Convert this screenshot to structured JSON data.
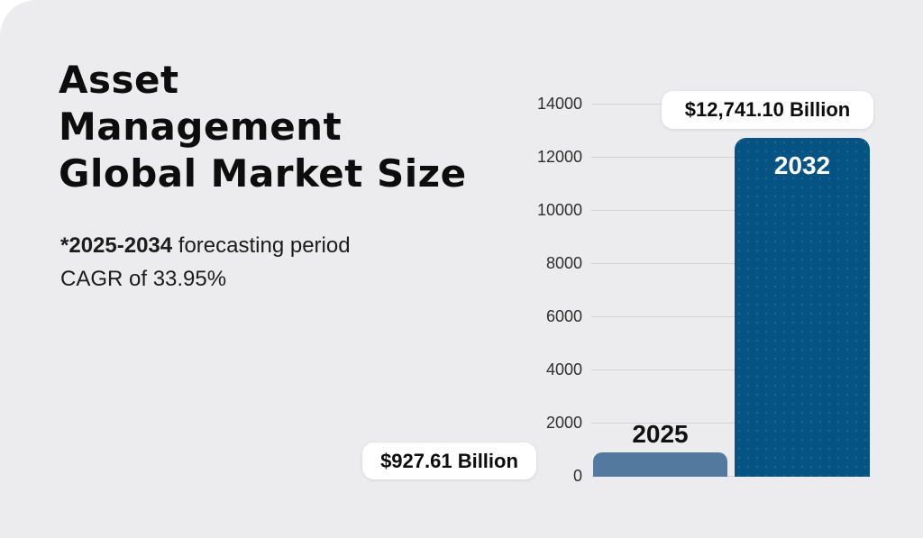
{
  "header": {
    "title_lines": [
      "Asset",
      "Management",
      "Global Market Size"
    ],
    "forecast_bold": "*2025-2034",
    "forecast_rest": " forecasting period",
    "cagr_line": "CAGR of 33.95%"
  },
  "chart_data": {
    "type": "bar",
    "title": "Asset Management Global Market Size",
    "unit": "USD Billion",
    "categories": [
      "2025",
      "2032"
    ],
    "values": [
      927.61,
      12741.1
    ],
    "data_labels": [
      "$927.61 Billion",
      "$12,741.10 Billion"
    ],
    "bar_colors": [
      "#54799E",
      "#045382"
    ],
    "ylim": [
      0,
      14000
    ],
    "yticks": [
      0,
      2000,
      4000,
      6000,
      8000,
      10000,
      12000,
      14000
    ],
    "yticks_display": [
      "14000",
      "12000",
      "10000",
      "8000",
      "6000",
      "4000",
      "2000",
      "0"
    ],
    "grid": true,
    "legend": "none",
    "annotation": "*2025-2034 forecasting period CAGR of 33.95%"
  },
  "colors": {
    "panel_background": "#ECECEE",
    "page_behind": "#FFFFFF",
    "bar_2025": "#54799E",
    "bar_2032": "#045382",
    "gridline": "#D3D3D6",
    "text_dark": "#111111",
    "callout_background": "#FFFFFF"
  }
}
